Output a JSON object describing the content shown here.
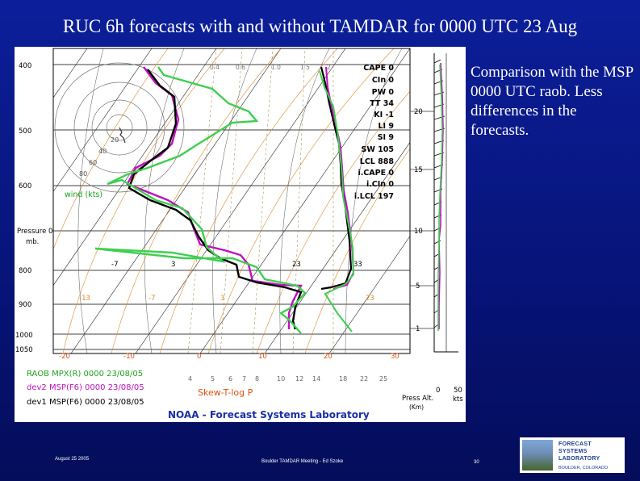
{
  "slide": {
    "title": "RUC 6h forecasts with and without TAMDAR for 0000 UTC 23 Aug",
    "side_text": "Comparison with the MSP 0000 UTC raob.  Less differences in the forecasts.",
    "footer_date": "August 25 2005",
    "footer_center": "Boulder TAMDAR Meeting - Ed Szoke",
    "page_number": "30"
  },
  "logo": {
    "line1": "FORECAST",
    "line2": "SYSTEMS",
    "line3": "LABORATORY",
    "location": "BOULDER, COLORADO"
  },
  "chart": {
    "pressure_labels": [
      "400",
      "500",
      "600",
      "Pressure 0",
      "mb.",
      "800",
      "900",
      "1000",
      "1050"
    ],
    "wind_label": "wind (kts)",
    "hodo_labels": [
      "20",
      "40",
      "60",
      "80"
    ],
    "mixing_ratio_labels": [
      "0.4",
      "0.6",
      "1.0",
      "1.5",
      "2"
    ],
    "temp_labels_row1": [
      "-7",
      "3",
      "23",
      "33"
    ],
    "temp_labels_row2": [
      "-13",
      "-7",
      "3",
      "23"
    ],
    "temp_bottom_labels": [
      "-20",
      "-10",
      "0",
      "10",
      "20",
      "30"
    ],
    "mixing_bottom_labels": [
      "4",
      "5",
      "6",
      "7",
      "8",
      "10",
      "12",
      "14",
      "18",
      "22",
      "25"
    ],
    "altitude_labels": [
      "20",
      "15",
      "10",
      "5",
      "1"
    ],
    "axis_bottom_left": "0",
    "axis_bottom_right": "50",
    "press_alt_label": "Press Alt.",
    "press_alt_unit": "(Km)",
    "kts_label": "kts",
    "skewt_label": "Skew-T-log P",
    "footer_lab": "NOAA - Forecast Systems Laboratory",
    "legend": [
      {
        "label": "RAOB MPX(R) 0000 23/08/05",
        "color": "#1fa31f"
      },
      {
        "label": "dev2 MSP(F6) 0000 23/08/05",
        "color": "#c010c0"
      },
      {
        "label": "dev1 MSP(F6) 0000 23/08/05",
        "color": "#000000"
      }
    ],
    "indices": [
      {
        "label": "CAPE 0"
      },
      {
        "label": "CIn 0"
      },
      {
        "label": "PW 0"
      },
      {
        "label": "TT 34"
      },
      {
        "label": "KI -1"
      },
      {
        "label": "LI 9"
      },
      {
        "label": "SI 9"
      },
      {
        "label": "SW 105"
      },
      {
        "label": "LCL 888"
      },
      {
        "label": "i.CAPE 0"
      },
      {
        "label": "i.CIn 0"
      },
      {
        "label": "i.LCL 197"
      }
    ]
  }
}
